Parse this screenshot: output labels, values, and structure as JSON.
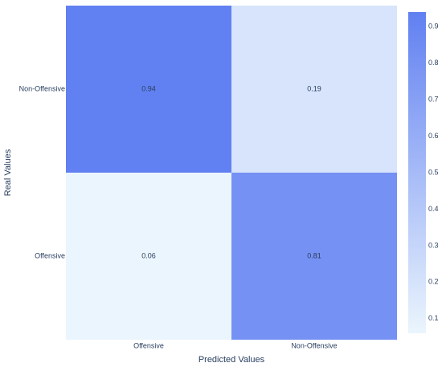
{
  "chart_data": {
    "type": "heatmap",
    "x": [
      "Offensive",
      "Non-Offensive"
    ],
    "y": [
      "Non-Offensive",
      "Offensive"
    ],
    "z": [
      [
        0.94,
        0.19
      ],
      [
        0.06,
        0.81
      ]
    ],
    "xlabel": "Predicted Values",
    "ylabel": "Real Values",
    "zlim": [
      0.06,
      0.94
    ],
    "colorscale": [
      "#ebf5fd",
      "#6180f1"
    ],
    "colorbar_ticks": [
      0.1,
      0.2,
      0.3,
      0.4,
      0.5,
      0.6,
      0.7,
      0.8,
      0.9
    ]
  }
}
